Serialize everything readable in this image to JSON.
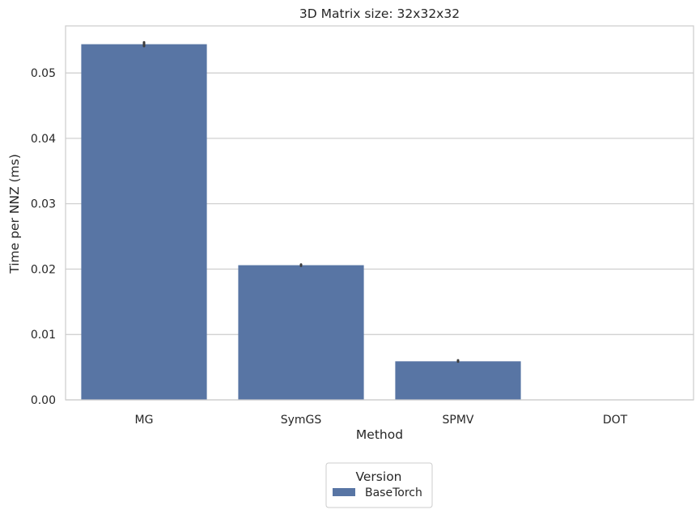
{
  "chart_data": {
    "type": "bar",
    "title": "3D Matrix size: 32x32x32",
    "xlabel": "Method",
    "ylabel": "Time per NNZ (ms)",
    "categories": [
      "MG",
      "SymGS",
      "SPMV",
      "DOT"
    ],
    "series": [
      {
        "name": "BaseTorch",
        "values": [
          0.0544,
          0.0206,
          0.0059,
          0.0
        ],
        "error_high": [
          0.0547,
          0.0207,
          0.00605,
          0.0
        ],
        "error_low": [
          0.0541,
          0.0205,
          0.00585,
          0.0
        ]
      }
    ],
    "yticks": [
      "0.00",
      "0.01",
      "0.02",
      "0.03",
      "0.04",
      "0.05"
    ],
    "ytick_values": [
      0,
      0.01,
      0.02,
      0.03,
      0.04,
      0.05
    ],
    "ylim": [
      0,
      0.0572
    ],
    "grid": true,
    "legend": {
      "title": "Version",
      "placement": "bottom-center"
    },
    "colors": {
      "bar": "#5875a4",
      "grid": "#cccccc",
      "spine": "#cccccc",
      "errorbar": "#3d3d3d"
    }
  }
}
